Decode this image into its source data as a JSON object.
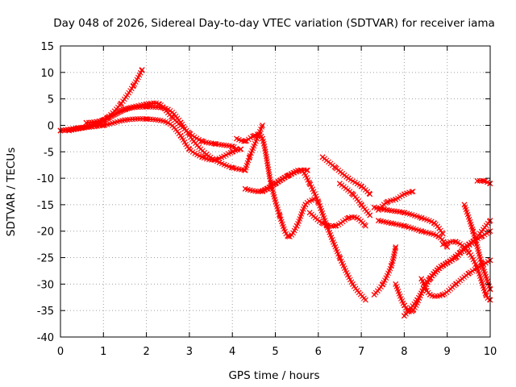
{
  "chart_data": {
    "type": "scatter",
    "title": "Day 048 of 2026, Sidereal Day-to-day VTEC variation (SDTVAR) for receiver iama",
    "xlabel": "GPS time / hours",
    "ylabel": "SDTVAR / TECUs",
    "xlim": [
      0,
      10
    ],
    "ylim": [
      -40,
      15
    ],
    "xticks": [
      0,
      1,
      2,
      3,
      4,
      5,
      6,
      7,
      8,
      9,
      10
    ],
    "yticks": [
      -40,
      -35,
      -30,
      -25,
      -20,
      -15,
      -10,
      -5,
      0,
      5,
      10,
      15
    ],
    "grid": true,
    "marker": "x",
    "color": "#ff0000",
    "series": [
      {
        "x": [
          0.0,
          0.4,
          0.8,
          1.1,
          1.4,
          1.7,
          1.9
        ],
        "y": [
          -1.0,
          -0.5,
          0.0,
          1.5,
          4.0,
          7.5,
          10.5
        ]
      },
      {
        "x": [
          0.0,
          0.5,
          1.0,
          1.5,
          2.0,
          2.3,
          2.6,
          3.0,
          3.3,
          3.6,
          4.0,
          4.1
        ],
        "y": [
          -1.0,
          -0.5,
          1.0,
          3.0,
          4.0,
          4.0,
          1.5,
          -1.5,
          -3.0,
          -3.5,
          -4.0,
          -4.5
        ]
      },
      {
        "x": [
          0.2,
          0.5,
          1.0,
          1.5,
          2.0,
          2.5,
          2.8,
          3.0,
          3.3,
          3.6,
          4.0,
          4.2
        ],
        "y": [
          -1.0,
          -0.5,
          0.0,
          1.0,
          1.2,
          0.5,
          -2.0,
          -4.5,
          -6.0,
          -6.5,
          -5.0,
          -4.5
        ]
      },
      {
        "x": [
          0.6,
          1.0,
          1.5,
          2.0,
          2.5,
          2.8,
          3.1,
          3.4,
          3.7,
          4.0,
          4.3
        ],
        "y": [
          0.5,
          1.0,
          3.0,
          3.5,
          3.0,
          0.5,
          -3.0,
          -5.5,
          -7.0,
          -8.0,
          -8.5
        ]
      },
      {
        "x": [
          4.3,
          4.4,
          4.6,
          4.7
        ],
        "y": [
          -8.5,
          -6.0,
          -2.0,
          0.0
        ]
      },
      {
        "x": [
          4.1,
          4.3,
          4.5,
          4.7,
          4.9,
          5.1,
          5.3,
          5.5,
          5.7,
          5.9
        ],
        "y": [
          -2.5,
          -3.0,
          -2.0,
          -2.5,
          -11.0,
          -17.0,
          -21.0,
          -19.0,
          -15.0,
          -14.0
        ]
      },
      {
        "x": [
          4.3,
          4.6,
          4.8,
          5.0,
          5.3,
          5.6,
          5.75
        ],
        "y": [
          -12.0,
          -12.5,
          -12.0,
          -11.0,
          -9.5,
          -8.5,
          -8.5
        ]
      },
      {
        "x": [
          4.7,
          5.0,
          5.3,
          5.6,
          5.8,
          6.0,
          6.2,
          6.5,
          6.8,
          7.1
        ],
        "y": [
          -12.5,
          -11.0,
          -9.5,
          -8.5,
          -11.0,
          -14.5,
          -19.0,
          -25.0,
          -30.0,
          -33.0
        ]
      },
      {
        "x": [
          5.8,
          6.1,
          6.4,
          6.7,
          6.9,
          7.1
        ],
        "y": [
          -16.5,
          -18.5,
          -19.0,
          -17.5,
          -17.5,
          -19.0
        ]
      },
      {
        "x": [
          6.1,
          6.4,
          6.7,
          7.0,
          7.2
        ],
        "y": [
          -6.0,
          -8.0,
          -10.0,
          -11.5,
          -13.0
        ]
      },
      {
        "x": [
          6.5,
          6.8,
          7.0,
          7.2
        ],
        "y": [
          -11.0,
          -13.0,
          -15.0,
          -17.0
        ]
      },
      {
        "x": [
          7.4,
          7.6,
          7.8,
          8.0,
          8.2
        ],
        "y": [
          -16.0,
          -14.5,
          -14.0,
          -13.0,
          -12.5
        ]
      },
      {
        "x": [
          7.3,
          7.6,
          8.0,
          8.4,
          8.7,
          8.9
        ],
        "y": [
          -15.5,
          -16.0,
          -16.5,
          -17.5,
          -18.5,
          -20.5
        ]
      },
      {
        "x": [
          7.4,
          7.7,
          8.0,
          8.4,
          8.8,
          9.0
        ],
        "y": [
          -18.0,
          -18.5,
          -19.0,
          -20.0,
          -21.0,
          -23.0
        ]
      },
      {
        "x": [
          7.3,
          7.5,
          7.7,
          7.8
        ],
        "y": [
          -32.0,
          -30.0,
          -26.5,
          -23.0
        ]
      },
      {
        "x": [
          7.8,
          8.0,
          8.2,
          8.5,
          8.8,
          9.0,
          9.3,
          9.6,
          10.0
        ],
        "y": [
          -30.0,
          -34.0,
          -35.0,
          -30.0,
          -27.0,
          -26.0,
          -24.0,
          -22.0,
          -18.0
        ]
      },
      {
        "x": [
          8.0,
          8.3,
          8.6,
          8.9,
          9.2,
          9.5,
          9.8,
          10.0
        ],
        "y": [
          -36.0,
          -33.0,
          -29.0,
          -26.5,
          -25.0,
          -22.5,
          -21.0,
          -20.0
        ]
      },
      {
        "x": [
          8.4,
          8.6,
          8.9,
          9.2,
          9.5,
          9.8,
          10.0
        ],
        "y": [
          -29.0,
          -32.0,
          -32.0,
          -30.0,
          -28.0,
          -26.5,
          -25.5
        ]
      },
      {
        "x": [
          8.9,
          9.2,
          9.5,
          9.7,
          9.9,
          10.0
        ],
        "y": [
          -22.5,
          -22.0,
          -24.0,
          -27.0,
          -32.0,
          -33.0
        ]
      },
      {
        "x": [
          9.4,
          9.6,
          9.8,
          10.0
        ],
        "y": [
          -15.0,
          -20.0,
          -26.0,
          -31.0
        ]
      },
      {
        "x": [
          9.7,
          9.85,
          10.0
        ],
        "y": [
          -10.5,
          -10.5,
          -11.0
        ]
      }
    ]
  }
}
